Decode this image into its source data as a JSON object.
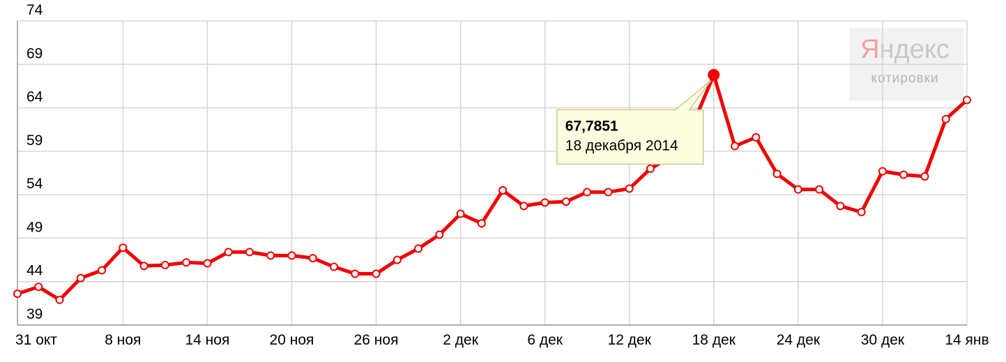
{
  "chart_data": {
    "type": "line",
    "categories": [
      "31 окт",
      null,
      null,
      null,
      null,
      "8 ноя",
      null,
      null,
      null,
      "14 ноя",
      null,
      null,
      null,
      "20 ноя",
      null,
      null,
      null,
      "26 ноя",
      null,
      null,
      null,
      "2 дек",
      null,
      null,
      null,
      "6 дек",
      null,
      null,
      null,
      "12 дек",
      null,
      null,
      null,
      "18 дек",
      null,
      null,
      null,
      "24 дек",
      null,
      null,
      null,
      "30 дек",
      null,
      null,
      null,
      "14 янв"
    ],
    "series": [
      {
        "color": "#f00000",
        "values": [
          42.6,
          43.4,
          41.9,
          44.4,
          45.3,
          47.9,
          45.8,
          45.9,
          46.2,
          46.1,
          47.4,
          47.4,
          47.0,
          47.0,
          46.7,
          45.7,
          44.9,
          44.9,
          46.5,
          47.8,
          49.4,
          51.8,
          50.7,
          54.5,
          52.7,
          53.1,
          53.2,
          54.3,
          54.3,
          54.7,
          57.0,
          58.4,
          62.0,
          67.7851,
          59.6,
          60.6,
          56.4,
          54.6,
          54.6,
          52.7,
          52.0,
          56.7,
          56.3,
          56.1,
          62.7,
          64.9
        ],
        "value_labels": [
          null,
          null,
          null,
          null,
          null,
          null,
          null,
          null,
          null,
          null,
          null,
          null,
          null,
          null,
          null,
          null,
          null,
          null,
          null,
          null,
          null,
          null,
          null,
          null,
          null,
          null,
          null,
          null,
          null,
          null,
          null,
          null,
          null,
          "67,7851",
          null,
          null,
          null,
          null,
          null,
          null,
          null,
          null,
          null,
          null,
          null,
          null
        ]
      }
    ],
    "annotation": "18 декабря 2014",
    "ylim": [
      39,
      74
    ],
    "yticks": [
      39,
      44,
      49,
      54,
      59,
      64,
      69,
      74
    ],
    "grid": true,
    "watermark": {
      "brand": "Яндекс",
      "sub": "котировки"
    }
  }
}
